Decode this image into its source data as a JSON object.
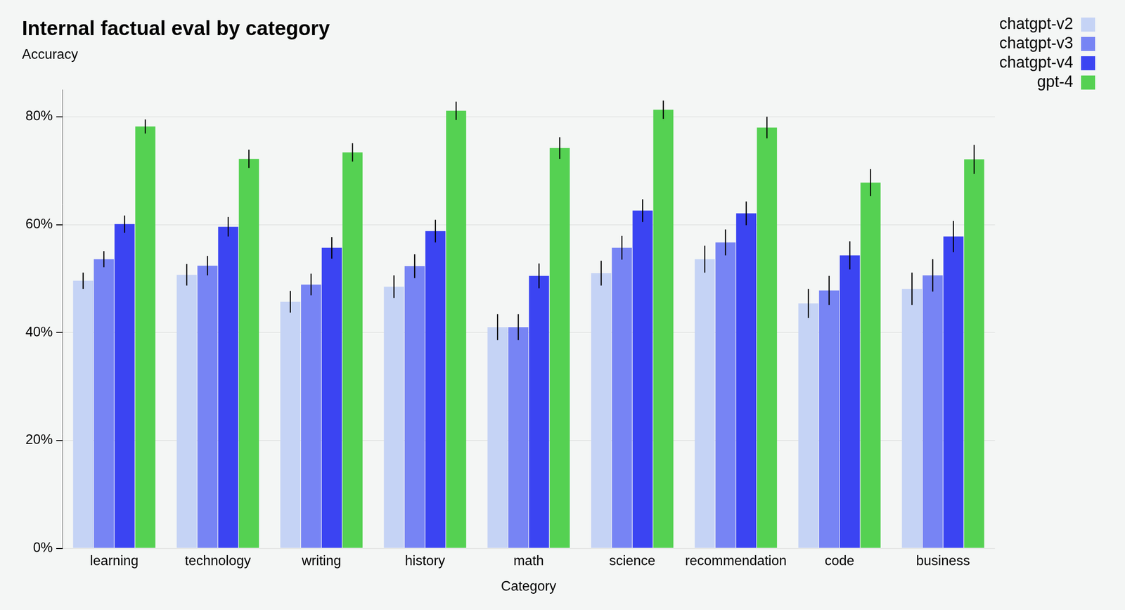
{
  "chart_data": {
    "type": "bar",
    "title": "Internal factual eval by category",
    "subtitle": "Accuracy",
    "x_label": "Category",
    "categories": [
      "learning",
      "technology",
      "writing",
      "history",
      "math",
      "science",
      "recommendation",
      "code",
      "business"
    ],
    "series": [
      {
        "name": "chatgpt-v2",
        "color": "#c5d3f5",
        "values": [
          49.6,
          50.7,
          45.7,
          48.5,
          41.0,
          51.0,
          53.6,
          45.4,
          48.1
        ],
        "errors": [
          1.5,
          2.0,
          2.0,
          2.1,
          2.4,
          2.3,
          2.5,
          2.7,
          3.0
        ]
      },
      {
        "name": "chatgpt-v3",
        "color": "#7784f4",
        "values": [
          53.6,
          52.4,
          48.9,
          52.3,
          41.0,
          55.7,
          56.7,
          47.8,
          50.6
        ],
        "errors": [
          1.5,
          1.8,
          2.0,
          2.2,
          2.4,
          2.2,
          2.4,
          2.7,
          3.0
        ]
      },
      {
        "name": "chatgpt-v4",
        "color": "#3b44f2",
        "values": [
          60.1,
          59.6,
          55.7,
          58.8,
          50.5,
          62.6,
          62.1,
          54.3,
          57.8
        ],
        "errors": [
          1.6,
          1.8,
          2.0,
          2.1,
          2.3,
          2.1,
          2.2,
          2.6,
          2.9
        ]
      },
      {
        "name": "gpt-4",
        "color": "#55d152",
        "values": [
          78.2,
          72.2,
          73.4,
          81.1,
          74.2,
          81.3,
          78.0,
          67.8,
          72.1
        ],
        "errors": [
          1.3,
          1.7,
          1.7,
          1.7,
          2.0,
          1.7,
          2.0,
          2.5,
          2.7
        ]
      }
    ],
    "ylim": [
      0,
      85
    ],
    "yticks": [
      {
        "value": 0,
        "label": "0%"
      },
      {
        "value": 20,
        "label": "20%"
      },
      {
        "value": 40,
        "label": "40%"
      },
      {
        "value": 60,
        "label": "60%"
      },
      {
        "value": 80,
        "label": "80%"
      }
    ],
    "grid": true,
    "legend": "right"
  }
}
